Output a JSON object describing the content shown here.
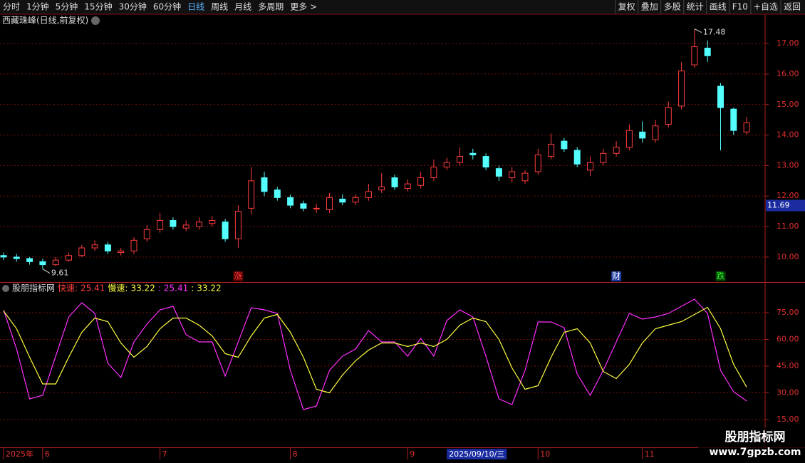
{
  "toolbar": {
    "periods": [
      "分时",
      "1分钟",
      "5分钟",
      "15分钟",
      "30分钟",
      "60分钟",
      "日线",
      "周线",
      "月线",
      "多周期",
      "更多 >"
    ],
    "active_period": 6,
    "buttons": [
      "复权",
      "叠加",
      "多股",
      "统计",
      "画线",
      "F10",
      "+自选",
      "返回"
    ]
  },
  "watermark": {
    "title": "股朋指标网",
    "url": "www.7gpzb.com"
  },
  "chart_data": [
    {
      "type": "candlestick",
      "title": "西藏珠峰(日线,前复权)",
      "categories": [
        "2025年",
        null,
        null,
        "6",
        null,
        null,
        null,
        null,
        null,
        null,
        null,
        null,
        "7",
        null,
        null,
        null,
        null,
        null,
        null,
        null,
        null,
        null,
        "8",
        null,
        null,
        null,
        null,
        null,
        null,
        null,
        null,
        "9",
        null,
        null,
        "2025/09/10/三",
        null,
        null,
        null,
        null,
        null,
        null,
        "10",
        null,
        null,
        null,
        null,
        null,
        null,
        null,
        "11",
        null,
        null,
        null,
        null,
        null,
        null,
        null,
        null
      ],
      "highlight_category": 34,
      "open": [
        10.05,
        10.0,
        9.95,
        9.85,
        9.75,
        9.9,
        10.05,
        10.3,
        10.4,
        10.15,
        10.2,
        10.6,
        10.9,
        11.2,
        10.95,
        11.0,
        11.1,
        11.15,
        10.6,
        11.6,
        12.6,
        12.2,
        11.95,
        11.75,
        11.6,
        11.55,
        11.9,
        11.8,
        11.95,
        12.2,
        12.6,
        12.25,
        12.35,
        12.6,
        12.95,
        13.1,
        13.4,
        13.3,
        12.9,
        12.6,
        12.5,
        12.8,
        13.3,
        13.8,
        13.5,
        12.85,
        13.1,
        13.4,
        13.6,
        14.1,
        13.85,
        14.35,
        14.95,
        16.3,
        16.85,
        15.6,
        14.85,
        14.1
      ],
      "high": [
        10.15,
        10.1,
        10.0,
        9.95,
        10.0,
        10.15,
        10.4,
        10.55,
        10.5,
        10.3,
        10.65,
        11.05,
        11.45,
        11.3,
        11.2,
        11.3,
        11.35,
        11.25,
        11.7,
        12.95,
        12.8,
        12.3,
        12.05,
        11.85,
        11.75,
        12.1,
        12.05,
        12.05,
        12.4,
        12.75,
        12.7,
        12.55,
        12.8,
        13.2,
        13.25,
        13.6,
        13.55,
        13.4,
        13.0,
        12.95,
        12.85,
        13.55,
        14.05,
        13.9,
        13.6,
        13.3,
        13.55,
        13.8,
        14.35,
        14.45,
        14.5,
        15.1,
        16.4,
        17.48,
        17.1,
        15.7,
        14.9,
        14.6
      ],
      "low": [
        9.9,
        9.85,
        9.75,
        9.61,
        9.7,
        9.85,
        10.0,
        10.2,
        10.1,
        10.05,
        10.1,
        10.5,
        10.8,
        10.9,
        10.85,
        10.9,
        11.0,
        10.5,
        10.3,
        11.4,
        12.0,
        11.85,
        11.6,
        11.5,
        11.45,
        11.45,
        11.7,
        11.7,
        11.85,
        12.1,
        12.2,
        12.15,
        12.25,
        12.5,
        12.85,
        13.0,
        13.2,
        12.85,
        12.5,
        12.45,
        12.4,
        12.7,
        13.2,
        13.45,
        12.95,
        12.65,
        13.0,
        13.3,
        13.5,
        13.75,
        13.75,
        14.25,
        14.85,
        16.2,
        16.4,
        13.5,
        14.0,
        14.0
      ],
      "close": [
        10.0,
        9.95,
        9.85,
        9.75,
        9.9,
        10.05,
        10.3,
        10.4,
        10.2,
        10.2,
        10.55,
        10.9,
        11.2,
        11.0,
        11.05,
        11.15,
        11.2,
        10.6,
        11.5,
        12.5,
        12.15,
        11.95,
        11.7,
        11.6,
        11.6,
        11.95,
        11.8,
        11.95,
        12.15,
        12.3,
        12.3,
        12.4,
        12.6,
        12.95,
        13.1,
        13.3,
        13.35,
        12.95,
        12.65,
        12.8,
        12.75,
        13.35,
        13.7,
        13.55,
        13.05,
        13.1,
        13.4,
        13.6,
        14.15,
        13.9,
        14.3,
        14.9,
        16.1,
        16.9,
        16.6,
        14.9,
        14.15,
        14.4
      ],
      "up_color": "#ff3c3c",
      "down_color": "#54ffff",
      "ylim": [
        9.18,
        17.96
      ],
      "yticks": [
        {
          "value": 10,
          "label": "10.00"
        },
        {
          "value": 11,
          "label": "11.00"
        },
        {
          "value": 12,
          "label": "12.00"
        },
        {
          "value": 13,
          "label": "13.00"
        },
        {
          "value": 14,
          "label": "14.00"
        },
        {
          "value": 15,
          "label": "15.00"
        },
        {
          "value": 16,
          "label": "16.00"
        },
        {
          "value": 17,
          "label": "17.00"
        }
      ],
      "grid": true,
      "cursor_price": 11.69,
      "max_index": 53,
      "min_index": 3,
      "events": [
        {
          "label": "涨",
          "index": 18,
          "color": "#ff4040",
          "bg": "#5a0000"
        },
        {
          "label": "财",
          "index": 47,
          "color": "#ffffff",
          "bg": "#1a3aa0"
        },
        {
          "label": "跌",
          "index": 55,
          "color": "#30ff30",
          "bg": "#003a00"
        }
      ]
    },
    {
      "type": "line",
      "title": "股朋指标网",
      "value_prefix": ":",
      "series": [
        {
          "name": "快速:",
          "color": "#ff30ff",
          "legend_color": "#ff4040",
          "values": [
            76.6,
            54.6,
            26.6,
            28.6,
            50.6,
            72.6,
            80.6,
            74.6,
            46.6,
            38.6,
            58.6,
            68.6,
            76.6,
            78.6,
            62.6,
            58.6,
            58.6,
            39.4,
            58.6,
            77.8,
            76.6,
            74.6,
            42.6,
            20.6,
            22.6,
            42.6,
            50.6,
            54.6,
            65,
            58.6,
            58.6,
            50.6,
            60.6,
            50.6,
            70.6,
            76.6,
            72.6,
            50.6,
            26.6,
            23.4,
            42.6,
            69.8,
            69.8,
            66.6,
            40.6,
            28.6,
            42.6,
            58.6,
            74.6,
            71.4,
            72.6,
            74.6,
            78.6,
            82.6,
            74.6,
            42.6,
            30.6,
            25.41
          ]
        },
        {
          "name": "慢速:",
          "color": "#ffff40",
          "legend_color": "#ffff40",
          "values": [
            76,
            66,
            50,
            35,
            35,
            50,
            64,
            72,
            70,
            58,
            50,
            56,
            66,
            72,
            72,
            68,
            62,
            52,
            50,
            62,
            72,
            74,
            64,
            50,
            32,
            30,
            40,
            48,
            54,
            58,
            58,
            56,
            58,
            56,
            60,
            68,
            72,
            70,
            60,
            44,
            32,
            34,
            50,
            64,
            66,
            58,
            42,
            38,
            46,
            58,
            66,
            68,
            70,
            74,
            78,
            66,
            46,
            33.22
          ]
        }
      ],
      "ylim": [
        -0.6,
        91.8
      ],
      "yticks": [
        {
          "value": 15,
          "label": "15.00"
        },
        {
          "value": 30,
          "label": "30.00"
        },
        {
          "value": 45,
          "label": "45.00"
        },
        {
          "value": 60,
          "label": "60.00"
        },
        {
          "value": 75,
          "label": "75.00"
        }
      ],
      "grid": true
    }
  ]
}
